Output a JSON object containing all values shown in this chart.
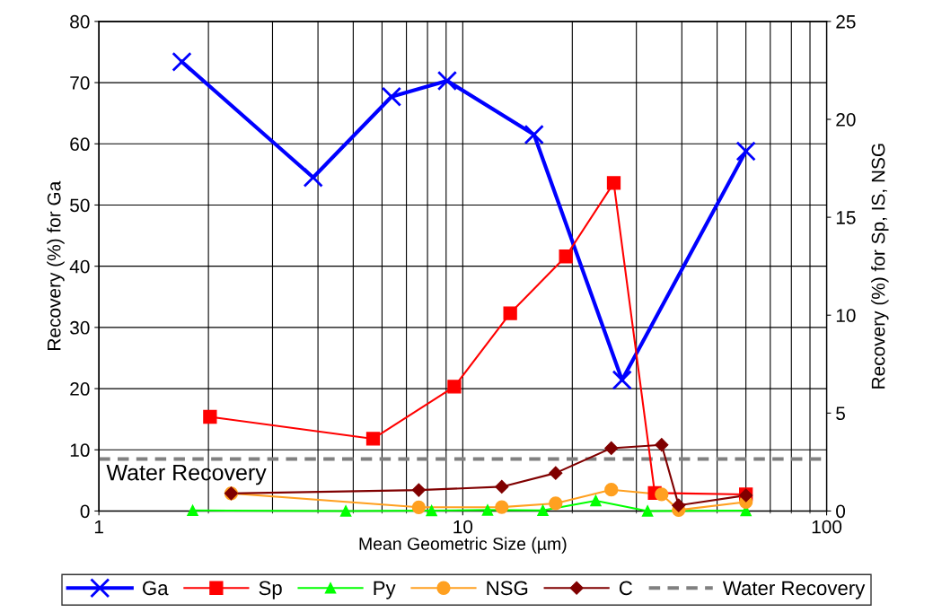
{
  "chart_data": {
    "type": "line",
    "xlabel": "Mean Geometric Size (µm)",
    "ylabel": "Recovery (%) for Ga",
    "y2label": "Recovery (%) for Sp, IS, NSG",
    "log": "x",
    "xlim": [
      1,
      100
    ],
    "xticks": [
      1,
      10,
      100
    ],
    "ylim": [
      0,
      80
    ],
    "yticks": [
      0,
      10,
      20,
      30,
      40,
      50,
      60,
      70,
      80
    ],
    "y2lim": [
      0,
      25
    ],
    "y2ticks": [
      0,
      5,
      10,
      15,
      20,
      25
    ],
    "grid": true,
    "legend": "bottom",
    "annotations": [
      {
        "text": "Water Recovery",
        "x": 1,
        "y": 8.5
      }
    ],
    "series": [
      {
        "name": "Ga",
        "color": "#0000ff",
        "marker": "cross",
        "x": [
          1.69,
          3.88,
          6.37,
          9.06,
          15.7,
          27.4,
          60
        ],
        "values": [
          73.4,
          54.5,
          67.7,
          70.3,
          61.5,
          21.4,
          58.8
        ]
      },
      {
        "name": "Sp",
        "color": "#ff0000",
        "marker": "square",
        "axis": "y2",
        "x": [
          2.02,
          5.67,
          9.48,
          13.5,
          19.2,
          26.0,
          33.7,
          60
        ],
        "values": [
          4.81,
          3.69,
          6.35,
          10.1,
          13.0,
          16.75,
          0.92,
          0.85
        ]
      },
      {
        "name": "Py",
        "color": "#00ff00",
        "marker": "triangle",
        "axis": "y2",
        "x": [
          1.81,
          4.77,
          8.21,
          11.7,
          16.6,
          23.2,
          32.2,
          60
        ],
        "values": [
          0.03,
          0,
          0.02,
          0.05,
          0.03,
          0.53,
          0,
          0.02
        ]
      },
      {
        "name": "NSG",
        "color": "#ffa020",
        "marker": "circle",
        "axis": "y2",
        "x": [
          2.31,
          7.57,
          12.8,
          18.0,
          25.6,
          35.2,
          39.2,
          60
        ],
        "values": [
          0.9,
          0.19,
          0.2,
          0.39,
          1.09,
          0.85,
          0.05,
          0.46
        ]
      },
      {
        "name": "C",
        "color": "#800000",
        "marker": "diamond",
        "axis": "y2",
        "x": [
          2.31,
          7.57,
          12.8,
          18.0,
          25.6,
          35.2,
          39.2,
          60
        ],
        "values": [
          0.9,
          1.07,
          1.24,
          1.94,
          3.21,
          3.38,
          0.29,
          0.8
        ]
      },
      {
        "name": "Water Recovery",
        "color": "#808080",
        "marker": "none",
        "line_style": "dashed",
        "x": [
          1,
          100
        ],
        "values": [
          8.5,
          8.5
        ]
      }
    ]
  }
}
